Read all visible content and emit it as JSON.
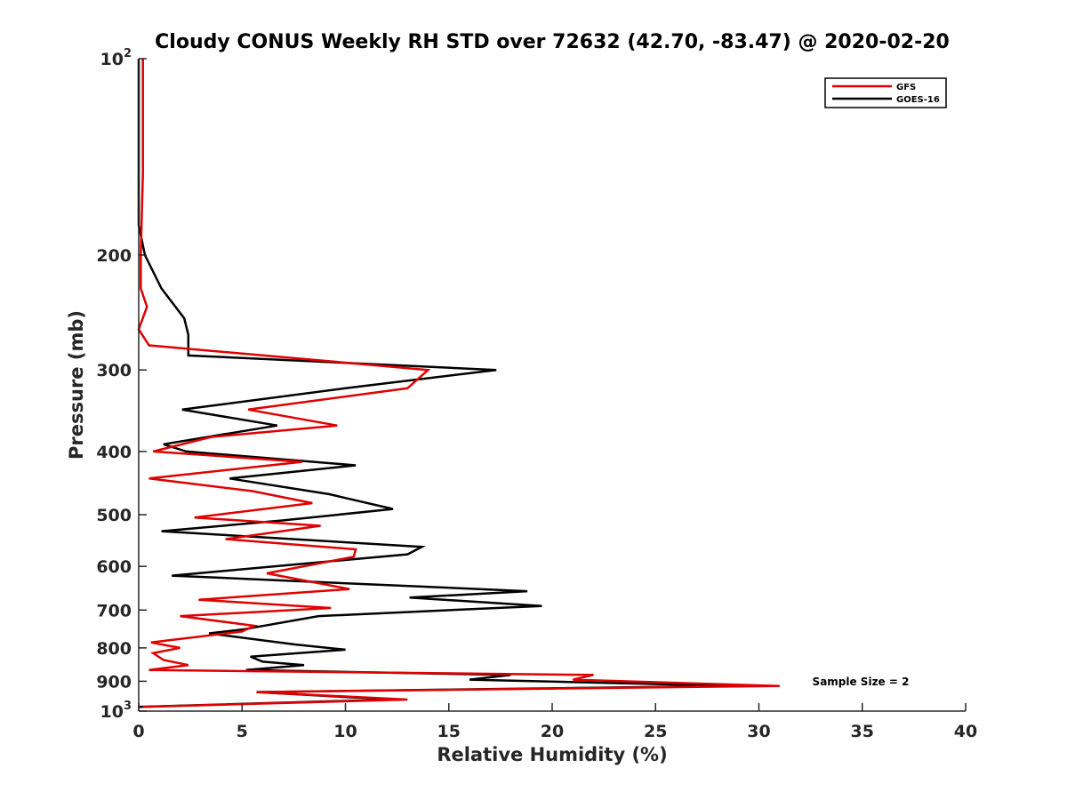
{
  "chart_data": {
    "type": "line",
    "title": "Cloudy CONUS Weekly RH STD over 72632 (42.70, -83.47) @ 2020-02-20",
    "xlabel": "Relative Humidity (%)",
    "ylabel": "Pressure (mb)",
    "xlim": [
      0,
      40
    ],
    "ylim": [
      100,
      1000
    ],
    "yscale": "log",
    "y_reversed": true,
    "x_ticks": [
      "0",
      "5",
      "10",
      "15",
      "20",
      "25",
      "30",
      "35",
      "40"
    ],
    "y_ticks": [
      {
        "value": 100,
        "base": "10",
        "exp": "2"
      },
      {
        "value": 200,
        "label": "200"
      },
      {
        "value": 300,
        "label": "300"
      },
      {
        "value": 400,
        "label": "400"
      },
      {
        "value": 500,
        "label": "500"
      },
      {
        "value": 600,
        "label": "600"
      },
      {
        "value": 700,
        "label": "700"
      },
      {
        "value": 800,
        "label": "800"
      },
      {
        "value": 900,
        "label": "900"
      },
      {
        "value": 1000,
        "base": "10",
        "exp": "3"
      }
    ],
    "legend_position": "top-right",
    "annotation": "Sample Size = 2",
    "series": [
      {
        "name": "GFS",
        "color": "#e00000",
        "points": [
          [
            0.2,
            100
          ],
          [
            0.2,
            150
          ],
          [
            0.1,
            200
          ],
          [
            0.1,
            225
          ],
          [
            0.4,
            240
          ],
          [
            0,
            260
          ],
          [
            0.5,
            275
          ],
          [
            14,
            300
          ],
          [
            13,
            320
          ],
          [
            5.3,
            345
          ],
          [
            9.6,
            365
          ],
          [
            3.5,
            380
          ],
          [
            0.7,
            400
          ],
          [
            7.9,
            415
          ],
          [
            0.5,
            440
          ],
          [
            5.5,
            460
          ],
          [
            8.4,
            480
          ],
          [
            2.7,
            505
          ],
          [
            8.8,
            520
          ],
          [
            4.2,
            545
          ],
          [
            10.5,
            565
          ],
          [
            10.4,
            580
          ],
          [
            6.2,
            615
          ],
          [
            10.2,
            650
          ],
          [
            2.9,
            675
          ],
          [
            9.3,
            695
          ],
          [
            2,
            715
          ],
          [
            5.6,
            740
          ],
          [
            5,
            755
          ],
          [
            0.6,
            785
          ],
          [
            2,
            800
          ],
          [
            0.7,
            815
          ],
          [
            1.2,
            835
          ],
          [
            2.4,
            850
          ],
          [
            0.5,
            865
          ],
          [
            22,
            880
          ],
          [
            21,
            895
          ],
          [
            31,
            915
          ],
          [
            5.7,
            935
          ],
          [
            13,
            960
          ],
          [
            0.2,
            985
          ]
        ]
      },
      {
        "name": "GOES-16",
        "color": "#000000",
        "points": [
          [
            0,
            100
          ],
          [
            0,
            180
          ],
          [
            0.3,
            200
          ],
          [
            1.1,
            225
          ],
          [
            2.2,
            250
          ],
          [
            2.4,
            265
          ],
          [
            2.4,
            285
          ],
          [
            17.3,
            300
          ],
          [
            10,
            320
          ],
          [
            2.1,
            345
          ],
          [
            6.7,
            365
          ],
          [
            1.2,
            390
          ],
          [
            2.3,
            400
          ],
          [
            10.5,
            420
          ],
          [
            4.4,
            440
          ],
          [
            9.2,
            465
          ],
          [
            12.3,
            490
          ],
          [
            7,
            510
          ],
          [
            1.1,
            530
          ],
          [
            13.7,
            560
          ],
          [
            13,
            575
          ],
          [
            1.6,
            620
          ],
          [
            18.8,
            655
          ],
          [
            13.1,
            670
          ],
          [
            19.5,
            690
          ],
          [
            8.7,
            715
          ],
          [
            5,
            750
          ],
          [
            3.4,
            760
          ],
          [
            7.5,
            790
          ],
          [
            10,
            805
          ],
          [
            5.4,
            825
          ],
          [
            6,
            840
          ],
          [
            8,
            850
          ],
          [
            5.2,
            865
          ],
          [
            18,
            880
          ],
          [
            16,
            895
          ],
          [
            29,
            915
          ],
          [
            5.7,
            935
          ],
          [
            12.2,
            960
          ],
          [
            0,
            985
          ]
        ]
      }
    ]
  }
}
